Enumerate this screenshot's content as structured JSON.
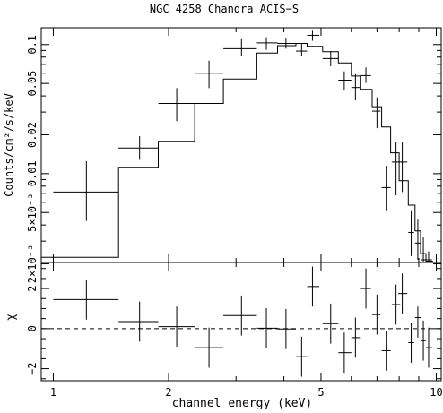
{
  "chart_data": {
    "type": "scatter",
    "title": "NGC 4258 Chandra ACIS−S",
    "xlabel": "channel energy (keV)",
    "xscale": "log",
    "xlim": [
      0.93,
      10.3
    ],
    "x_ticks": [
      {
        "value": 1,
        "label": "1"
      },
      {
        "value": 2,
        "label": "2"
      },
      {
        "value": 5,
        "label": "5"
      },
      {
        "value": 10,
        "label": "10"
      }
    ],
    "panels": [
      {
        "name": "spectrum",
        "ylabel": "Counts/cm²/s/keV",
        "yscale": "log",
        "ylim": [
          0.00205,
          0.135
        ],
        "y_ticks": [
          {
            "value": 0.002,
            "label": "2×10⁻³"
          },
          {
            "value": 0.005,
            "label": "5×10⁻³"
          },
          {
            "value": 0.01,
            "label": "0.01"
          },
          {
            "value": 0.02,
            "label": "0.02"
          },
          {
            "value": 0.05,
            "label": "0.05"
          },
          {
            "value": 0.1,
            "label": "0.1"
          }
        ],
        "data": [
          {
            "x": 1.22,
            "xlo": 1.0,
            "xhi": 1.48,
            "y": 0.0072,
            "ylo": 0.0043,
            "yhi": 0.0125
          },
          {
            "x": 1.68,
            "xlo": 1.48,
            "xhi": 1.88,
            "y": 0.0158,
            "ylo": 0.0128,
            "yhi": 0.0195
          },
          {
            "x": 2.1,
            "xlo": 1.88,
            "xhi": 2.34,
            "y": 0.035,
            "ylo": 0.0255,
            "yhi": 0.046
          },
          {
            "x": 2.55,
            "xlo": 2.34,
            "xhi": 2.78,
            "y": 0.06,
            "ylo": 0.046,
            "yhi": 0.075
          },
          {
            "x": 3.1,
            "xlo": 2.78,
            "xhi": 3.4,
            "y": 0.093,
            "ylo": 0.081,
            "yhi": 0.112
          },
          {
            "x": 3.6,
            "xlo": 3.4,
            "xhi": 3.85,
            "y": 0.103,
            "ylo": 0.091,
            "yhi": 0.114
          },
          {
            "x": 4.05,
            "xlo": 3.85,
            "xhi": 4.3,
            "y": 0.102,
            "ylo": 0.093,
            "yhi": 0.113
          },
          {
            "x": 4.45,
            "xlo": 4.3,
            "xhi": 4.6,
            "y": 0.089,
            "ylo": 0.082,
            "yhi": 0.101
          },
          {
            "x": 4.75,
            "xlo": 4.6,
            "xhi": 4.95,
            "y": 0.118,
            "ylo": 0.107,
            "yhi": 0.128
          },
          {
            "x": 5.3,
            "xlo": 5.05,
            "xhi": 5.55,
            "y": 0.078,
            "ylo": 0.068,
            "yhi": 0.089
          },
          {
            "x": 5.75,
            "xlo": 5.55,
            "xhi": 6.0,
            "y": 0.053,
            "ylo": 0.044,
            "yhi": 0.062
          },
          {
            "x": 6.15,
            "xlo": 6.0,
            "xhi": 6.35,
            "y": 0.0465,
            "ylo": 0.037,
            "yhi": 0.059
          },
          {
            "x": 6.55,
            "xlo": 6.35,
            "xhi": 6.75,
            "y": 0.0575,
            "ylo": 0.0505,
            "yhi": 0.0665
          },
          {
            "x": 7.0,
            "xlo": 6.8,
            "xhi": 7.15,
            "y": 0.0305,
            "ylo": 0.0225,
            "yhi": 0.039
          },
          {
            "x": 7.4,
            "xlo": 7.2,
            "xhi": 7.6,
            "y": 0.0078,
            "ylo": 0.0052,
            "yhi": 0.0115
          },
          {
            "x": 7.85,
            "xlo": 7.65,
            "xhi": 8.05,
            "y": 0.0123,
            "ylo": 0.0068,
            "yhi": 0.0175
          },
          {
            "x": 8.15,
            "xlo": 7.95,
            "xhi": 8.4,
            "y": 0.0123,
            "ylo": 0.0072,
            "yhi": 0.0175
          },
          {
            "x": 8.6,
            "xlo": 8.45,
            "xhi": 8.75,
            "y": 0.0035,
            "ylo": 0.0023,
            "yhi": 0.0052
          },
          {
            "x": 8.95,
            "xlo": 8.8,
            "xhi": 9.1,
            "y": 0.0029,
            "ylo": 0.00215,
            "yhi": 0.0044
          },
          {
            "x": 9.25,
            "xlo": 9.1,
            "xhi": 9.4,
            "y": 0.00215,
            "ylo": 0.00205,
            "yhi": 0.0032
          },
          {
            "x": 9.55,
            "xlo": 9.4,
            "xhi": 9.75,
            "y": 0.00215,
            "ylo": 0.00205,
            "yhi": 0.0025
          }
        ],
        "model_edges": [
          0.93,
          1.48,
          1.88,
          2.34,
          2.78,
          3.4,
          3.85,
          4.3,
          4.6,
          5.05,
          5.55,
          6.0,
          6.35,
          6.8,
          7.2,
          7.6,
          8.0,
          8.45,
          8.8,
          9.1,
          9.4,
          9.8
        ],
        "model_values": [
          0.00225,
          0.0112,
          0.0178,
          0.035,
          0.054,
          0.086,
          0.098,
          0.102,
          0.097,
          0.088,
          0.072,
          0.057,
          0.045,
          0.033,
          0.023,
          0.0145,
          0.0088,
          0.0057,
          0.0036,
          0.0024,
          0.0021
        ]
      },
      {
        "name": "residuals",
        "ylabel": "χ",
        "yscale": "linear",
        "ylim": [
          -2.6,
          3.3
        ],
        "y_ticks": [
          {
            "value": -2,
            "label": "−2"
          },
          {
            "value": 0,
            "label": "0"
          },
          {
            "value": 2,
            "label": "2"
          }
        ],
        "zero_line": true,
        "data": [
          {
            "x": 1.22,
            "xlo": 1.0,
            "xhi": 1.48,
            "y": 1.45,
            "ylo": 0.45,
            "yhi": 2.45
          },
          {
            "x": 1.68,
            "xlo": 1.48,
            "xhi": 1.88,
            "y": 0.35,
            "ylo": -0.65,
            "yhi": 1.35
          },
          {
            "x": 2.1,
            "xlo": 1.88,
            "xhi": 2.34,
            "y": 0.1,
            "ylo": -0.9,
            "yhi": 1.1
          },
          {
            "x": 2.55,
            "xlo": 2.34,
            "xhi": 2.78,
            "y": -0.95,
            "ylo": -1.95,
            "yhi": 0.05
          },
          {
            "x": 3.1,
            "xlo": 2.78,
            "xhi": 3.4,
            "y": 0.65,
            "ylo": -0.35,
            "yhi": 1.65
          },
          {
            "x": 3.6,
            "xlo": 3.4,
            "xhi": 3.85,
            "y": 0.02,
            "ylo": -0.98,
            "yhi": 1.02
          },
          {
            "x": 4.05,
            "xlo": 3.85,
            "xhi": 4.3,
            "y": -0.02,
            "ylo": -1.02,
            "yhi": 0.98
          },
          {
            "x": 4.45,
            "xlo": 4.3,
            "xhi": 4.6,
            "y": -1.4,
            "ylo": -2.4,
            "yhi": -0.4
          },
          {
            "x": 4.75,
            "xlo": 4.6,
            "xhi": 4.95,
            "y": 2.1,
            "ylo": 1.1,
            "yhi": 3.1
          },
          {
            "x": 5.3,
            "xlo": 5.05,
            "xhi": 5.55,
            "y": 0.25,
            "ylo": -0.75,
            "yhi": 1.25
          },
          {
            "x": 5.75,
            "xlo": 5.55,
            "xhi": 6.0,
            "y": -1.2,
            "ylo": -2.2,
            "yhi": -0.2
          },
          {
            "x": 6.15,
            "xlo": 6.0,
            "xhi": 6.35,
            "y": -0.45,
            "ylo": -1.45,
            "yhi": 0.55
          },
          {
            "x": 6.55,
            "xlo": 6.35,
            "xhi": 6.75,
            "y": 2.0,
            "ylo": 1.0,
            "yhi": 3.0
          },
          {
            "x": 7.0,
            "xlo": 6.8,
            "xhi": 7.15,
            "y": 0.7,
            "ylo": -0.3,
            "yhi": 1.7
          },
          {
            "x": 7.4,
            "xlo": 7.2,
            "xhi": 7.6,
            "y": -1.1,
            "ylo": -2.1,
            "yhi": -0.1
          },
          {
            "x": 7.85,
            "xlo": 7.65,
            "xhi": 8.05,
            "y": 1.2,
            "ylo": 0.2,
            "yhi": 2.2
          },
          {
            "x": 8.15,
            "xlo": 7.95,
            "xhi": 8.4,
            "y": 1.75,
            "ylo": 0.75,
            "yhi": 2.75
          },
          {
            "x": 8.6,
            "xlo": 8.45,
            "xhi": 8.75,
            "y": -0.7,
            "ylo": -1.7,
            "yhi": 0.3
          },
          {
            "x": 8.95,
            "xlo": 8.8,
            "xhi": 9.1,
            "y": 0.55,
            "ylo": -0.45,
            "yhi": 1.1
          },
          {
            "x": 9.25,
            "xlo": 9.1,
            "xhi": 9.4,
            "y": -0.6,
            "ylo": -1.6,
            "yhi": 0.4
          },
          {
            "x": 9.55,
            "xlo": 9.4,
            "xhi": 9.75,
            "y": -0.95,
            "ylo": -1.95,
            "yhi": 0.05
          }
        ]
      }
    ]
  }
}
